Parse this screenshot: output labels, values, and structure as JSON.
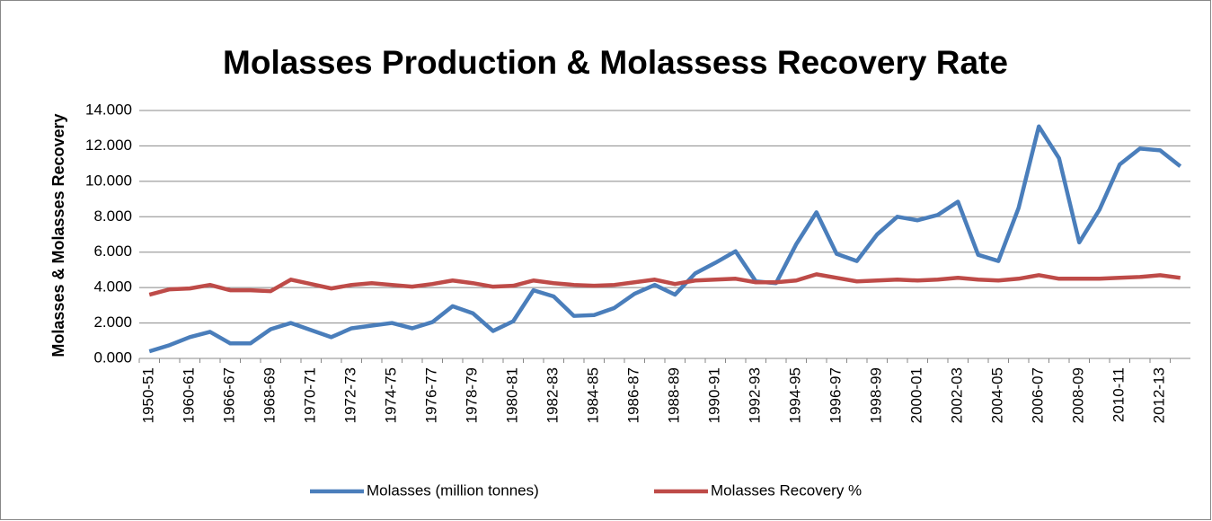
{
  "chart_data": {
    "type": "line",
    "title": "Molasses Production & Molassess Recovery Rate",
    "y_label": "Molasses & Molasses Recovery",
    "categories": [
      "1950-51",
      null,
      "1960-61",
      null,
      "1966-67",
      null,
      "1968-69",
      null,
      "1970-71",
      null,
      "1972-73",
      null,
      "1974-75",
      null,
      "1976-77",
      null,
      "1978-79",
      null,
      "1980-81",
      null,
      "1982-83",
      null,
      "1984-85",
      null,
      "1986-87",
      null,
      "1988-89",
      null,
      "1990-91",
      null,
      "1992-93",
      null,
      "1994-95",
      null,
      "1996-97",
      null,
      "1998-99",
      null,
      "2000-01",
      null,
      "2002-03",
      null,
      "2004-05",
      null,
      "2006-07",
      null,
      "2008-09",
      null,
      "2010-11",
      null,
      "2012-13",
      null
    ],
    "series": [
      {
        "name": "Molasses (million tonnes)",
        "color": "#4a7ebb",
        "values": [
          0.4,
          0.75,
          1.2,
          1.5,
          0.85,
          0.85,
          1.65,
          2.0,
          1.6,
          1.2,
          1.7,
          1.85,
          2.0,
          1.7,
          2.05,
          2.95,
          2.55,
          1.55,
          2.1,
          3.85,
          3.5,
          2.4,
          2.45,
          2.85,
          3.65,
          4.15,
          3.6,
          4.8,
          5.4,
          6.05,
          4.35,
          4.25,
          6.45,
          8.25,
          5.9,
          5.5,
          7.0,
          8.0,
          7.8,
          8.1,
          8.85,
          5.85,
          5.5,
          8.5,
          13.1,
          11.3,
          6.55,
          8.4,
          10.95,
          11.85,
          11.75,
          10.85
        ]
      },
      {
        "name": "Molasses Recovery %",
        "color": "#be4b48",
        "values": [
          3.6,
          3.9,
          3.95,
          4.15,
          3.85,
          3.85,
          3.8,
          4.45,
          4.2,
          3.95,
          4.15,
          4.25,
          4.15,
          4.05,
          4.2,
          4.4,
          4.25,
          4.05,
          4.1,
          4.4,
          4.25,
          4.15,
          4.1,
          4.15,
          4.3,
          4.45,
          4.2,
          4.4,
          4.45,
          4.5,
          4.3,
          4.3,
          4.4,
          4.75,
          4.55,
          4.35,
          4.4,
          4.45,
          4.4,
          4.45,
          4.55,
          4.45,
          4.4,
          4.5,
          4.7,
          4.5,
          4.5,
          4.5,
          4.55,
          4.6,
          4.7,
          4.55
        ]
      }
    ],
    "ylim": [
      0,
      14
    ],
    "yticks": [
      {
        "value": 0,
        "label": "0.000"
      },
      {
        "value": 2,
        "label": "2.000"
      },
      {
        "value": 4,
        "label": "4.000"
      },
      {
        "value": 6,
        "label": "6.000"
      },
      {
        "value": 8,
        "label": "8.000"
      },
      {
        "value": 10,
        "label": "10.000"
      },
      {
        "value": 12,
        "label": "12.000"
      },
      {
        "value": 14,
        "label": "14.000"
      }
    ],
    "grid": true,
    "legend": "bottom"
  }
}
